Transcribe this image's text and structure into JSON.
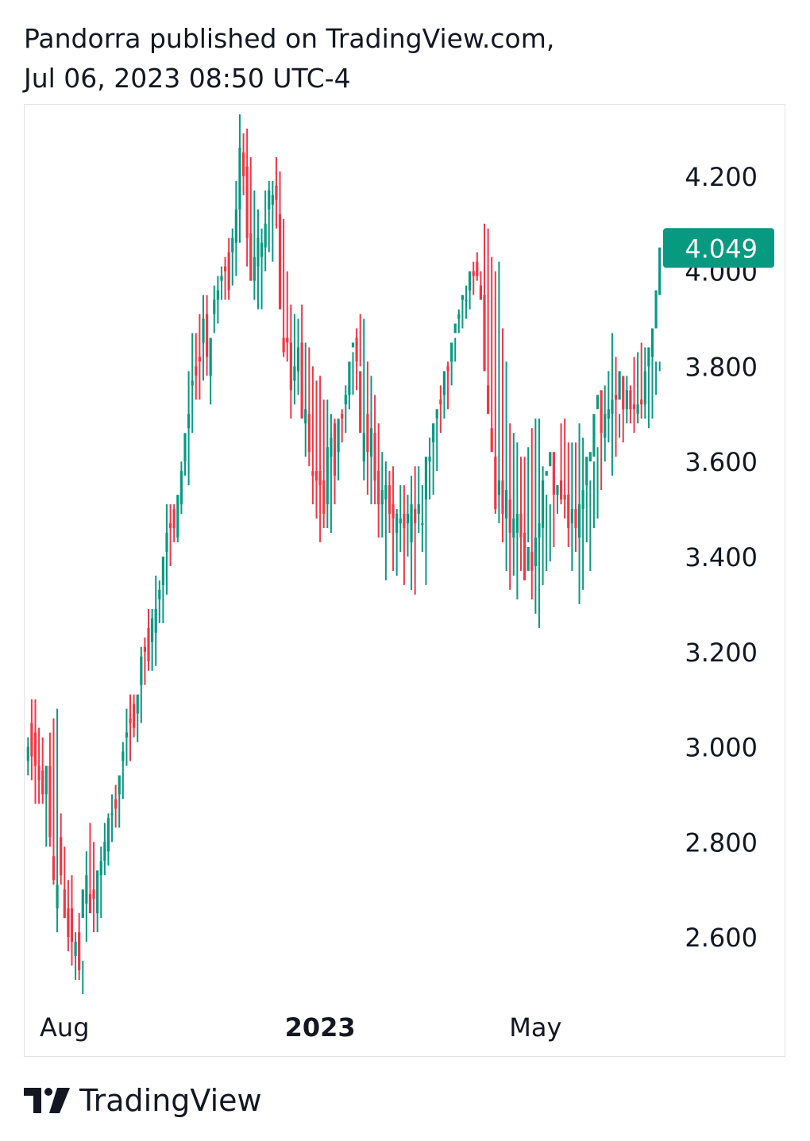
{
  "header": {
    "line1": "Pandorra published on TradingView.com,",
    "line2": "Jul 06, 2023 08:50 UTC-4"
  },
  "brand": {
    "name": "TradingView",
    "logo_icon": "tradingview-logo-icon"
  },
  "colors": {
    "up": "#089981",
    "down": "#f23645",
    "price_label_bg": "#089981",
    "price_label_text": "#ffffff"
  },
  "chart_data": {
    "type": "candlestick",
    "ylim": [
      2.5,
      4.33
    ],
    "yticks": [
      "4.200",
      "4.000",
      "3.800",
      "3.600",
      "3.400",
      "3.200",
      "3.000",
      "2.800",
      "2.600"
    ],
    "xticks": [
      {
        "label": "Aug",
        "bold": false,
        "index": 10
      },
      {
        "label": "2023",
        "bold": true,
        "index": 80
      },
      {
        "label": "May",
        "bold": false,
        "index": 139
      }
    ],
    "last_price": "4.049",
    "last_price_value": 4.049,
    "grid": false,
    "bars_high": [
      3.02,
      3.1,
      3.1,
      3.04,
      3.02,
      2.93,
      3.03,
      3.06,
      3.08,
      2.86,
      2.79,
      2.72,
      2.73,
      2.61,
      2.65,
      2.55,
      2.78,
      2.84,
      2.8,
      2.7,
      2.79,
      2.84,
      2.86,
      2.9,
      2.92,
      2.92,
      3.01,
      3.08,
      3.11,
      3.11,
      3.1,
      3.21,
      3.23,
      3.29,
      3.29,
      3.36,
      3.35,
      3.4,
      3.51,
      3.51,
      3.51,
      3.51,
      3.6,
      3.64,
      3.79,
      3.87,
      3.87,
      3.91,
      3.95,
      3.95,
      3.82,
      3.97,
      3.99,
      4.01,
      4.03,
      4.07,
      4.09,
      4.19,
      4.33,
      4.29,
      4.3,
      4.24,
      4.17,
      4.13,
      4.09,
      4.17,
      4.19,
      4.19,
      4.24,
      4.21,
      4.11,
      4.0,
      3.93,
      3.91,
      3.9,
      3.93,
      3.85,
      3.84,
      3.8,
      3.77,
      3.78,
      3.73,
      3.73,
      3.7,
      3.69,
      3.65,
      3.71,
      3.76,
      3.76,
      3.83,
      3.88,
      3.91,
      3.9,
      3.81,
      3.78,
      3.74,
      3.68,
      3.62,
      3.6,
      3.58,
      3.59,
      3.5,
      3.55,
      3.55,
      3.53,
      3.57,
      3.59,
      3.59,
      3.55,
      3.55,
      3.65,
      3.68,
      3.69,
      3.76,
      3.78,
      3.81,
      3.83,
      3.86,
      3.92,
      3.95,
      3.97,
      4.0,
      4.02,
      4.04,
      4.0,
      4.1,
      4.09,
      4.03,
      4.0,
      4.02,
      3.88,
      3.81,
      3.68,
      3.66,
      3.64,
      3.61,
      3.61,
      3.63,
      3.67,
      3.69,
      3.69,
      3.59,
      3.53,
      3.51,
      3.54,
      3.55,
      3.68,
      3.69,
      3.64,
      3.64,
      3.64,
      3.68,
      3.65,
      3.6,
      3.56,
      3.6,
      3.63,
      3.72,
      3.76,
      3.79,
      3.87,
      3.82,
      3.7,
      3.72,
      3.78,
      3.76,
      3.82,
      3.83,
      3.85,
      3.84,
      3.82,
      3.83,
      3.81,
      3.81,
      3.79,
      3.9,
      3.86,
      3.97,
      4.04
    ],
    "bars_low": [
      2.94,
      2.93,
      2.88,
      2.88,
      2.88,
      2.79,
      2.79,
      2.71,
      2.61,
      2.71,
      2.64,
      2.57,
      2.54,
      2.51,
      2.51,
      2.48,
      2.59,
      2.66,
      2.61,
      2.61,
      2.64,
      2.73,
      2.75,
      2.8,
      2.83,
      2.83,
      2.89,
      2.96,
      2.97,
      3.02,
      3.01,
      3.05,
      3.13,
      3.16,
      3.16,
      3.17,
      3.26,
      3.26,
      3.32,
      3.38,
      3.43,
      3.43,
      3.49,
      3.57,
      3.55,
      3.66,
      3.73,
      3.73,
      3.77,
      3.78,
      3.72,
      3.87,
      3.89,
      3.94,
      3.94,
      3.94,
      3.97,
      3.99,
      4.06,
      4.16,
      4.01,
      4.01,
      3.94,
      3.92,
      3.92,
      4.0,
      4.04,
      4.02,
      4.09,
      4.07,
      3.82,
      3.81,
      3.69,
      3.72,
      3.74,
      3.71,
      3.61,
      3.59,
      3.51,
      3.48,
      3.43,
      3.46,
      3.46,
      3.45,
      3.51,
      3.56,
      3.64,
      3.66,
      3.71,
      3.74,
      3.75,
      3.8,
      3.56,
      3.53,
      3.51,
      3.51,
      3.44,
      3.44,
      3.35,
      3.45,
      3.37,
      3.36,
      3.41,
      3.34,
      3.4,
      3.33,
      3.32,
      3.45,
      3.41,
      3.34,
      3.52,
      3.53,
      3.58,
      3.66,
      3.69,
      3.71,
      3.76,
      3.81,
      3.87,
      3.88,
      3.9,
      3.92,
      3.95,
      3.98,
      3.94,
      3.9,
      3.71,
      3.62,
      3.49,
      3.47,
      3.43,
      3.37,
      3.33,
      3.36,
      3.31,
      3.37,
      3.39,
      3.43,
      3.31,
      3.28,
      3.25,
      3.34,
      3.37,
      3.39,
      3.42,
      3.49,
      3.51,
      3.48,
      3.42,
      3.37,
      3.41,
      3.3,
      3.33,
      3.43,
      3.37,
      3.46,
      3.48,
      3.54,
      3.6,
      3.64,
      3.57,
      3.61,
      3.65,
      3.64,
      3.68,
      3.68,
      3.66,
      3.68,
      3.69,
      3.69,
      3.67,
      3.69,
      3.74,
      3.79,
      3.86
    ],
    "bars_open": [
      2.97,
      3.05,
      3.03,
      2.96,
      2.95,
      2.9,
      2.96,
      2.77,
      2.66,
      2.81,
      2.7,
      2.66,
      2.66,
      2.56,
      2.61,
      2.64,
      2.67,
      2.69,
      2.7,
      2.65,
      2.73,
      2.76,
      2.78,
      2.86,
      2.89,
      2.9,
      2.97,
      3.02,
      3.06,
      3.09,
      3.07,
      3.13,
      3.21,
      3.25,
      3.22,
      3.24,
      3.31,
      3.34,
      3.41,
      3.47,
      3.5,
      3.44,
      3.51,
      3.6,
      3.67,
      3.76,
      3.8,
      3.82,
      3.85,
      3.91,
      3.78,
      3.91,
      3.94,
      3.98,
      4.01,
      4.04,
      4.04,
      4.06,
      4.13,
      4.25,
      4.22,
      4.08,
      3.98,
      4.01,
      4.03,
      4.05,
      4.13,
      4.14,
      4.18,
      4.12,
      3.86,
      3.86,
      3.85,
      3.77,
      3.79,
      3.85,
      3.68,
      3.7,
      3.58,
      3.58,
      3.58,
      3.56,
      3.51,
      3.61,
      3.68,
      3.62,
      3.7,
      3.72,
      3.74,
      3.84,
      3.86,
      3.79,
      3.6,
      3.7,
      3.61,
      3.66,
      3.58,
      3.51,
      3.52,
      3.55,
      3.51,
      3.45,
      3.47,
      3.49,
      3.47,
      3.43,
      3.5,
      3.49,
      3.47,
      3.52,
      3.6,
      3.64,
      3.69,
      3.73,
      3.74,
      3.8,
      3.81,
      3.87,
      3.9,
      3.94,
      3.94,
      3.96,
      4.0,
      4.02,
      3.97,
      3.95,
      3.76,
      3.67,
      3.61,
      3.53,
      3.56,
      3.48,
      3.52,
      3.44,
      3.45,
      3.49,
      3.45,
      3.37,
      3.41,
      3.38,
      3.44,
      3.46,
      3.57,
      3.59,
      3.62,
      3.53,
      3.56,
      3.53,
      3.53,
      3.47,
      3.5,
      3.44,
      3.5,
      3.55,
      3.6,
      3.61,
      3.71,
      3.75,
      3.65,
      3.69,
      3.7,
      3.74,
      3.73,
      3.78,
      3.71,
      3.75,
      3.72,
      3.7,
      3.73,
      3.72,
      3.8,
      3.82,
      3.88,
      3.95
    ],
    "bars_close": [
      3.0,
      2.98,
      2.96,
      2.93,
      2.9,
      2.96,
      2.81,
      2.72,
      2.71,
      2.73,
      2.64,
      2.6,
      2.59,
      2.59,
      2.53,
      2.7,
      2.73,
      2.65,
      2.68,
      2.74,
      2.76,
      2.8,
      2.85,
      2.86,
      2.87,
      2.94,
      2.99,
      3.03,
      3.05,
      3.04,
      3.11,
      3.19,
      3.2,
      3.18,
      3.27,
      3.29,
      3.33,
      3.4,
      3.45,
      3.46,
      3.46,
      3.53,
      3.58,
      3.66,
      3.7,
      3.77,
      3.78,
      3.81,
      3.9,
      3.82,
      3.86,
      3.94,
      3.96,
      3.99,
      4.0,
      3.96,
      4.07,
      4.13,
      4.26,
      4.2,
      4.07,
      3.98,
      4.03,
      4.07,
      4.06,
      4.1,
      4.17,
      4.16,
      4.15,
      3.92,
      3.83,
      3.85,
      3.75,
      3.8,
      3.84,
      3.69,
      3.71,
      3.62,
      3.57,
      3.56,
      3.55,
      3.49,
      3.63,
      3.65,
      3.57,
      3.69,
      3.69,
      3.74,
      3.81,
      3.85,
      3.81,
      3.66,
      3.66,
      3.62,
      3.67,
      3.56,
      3.51,
      3.54,
      3.55,
      3.49,
      3.48,
      3.49,
      3.48,
      3.46,
      3.49,
      3.51,
      3.47,
      3.51,
      3.47,
      3.61,
      3.61,
      3.68,
      3.71,
      3.72,
      3.79,
      3.79,
      3.85,
      3.89,
      3.91,
      3.95,
      3.94,
      4.0,
      3.99,
      3.99,
      3.94,
      3.79,
      3.7,
      3.62,
      3.5,
      3.56,
      3.49,
      3.54,
      3.45,
      3.48,
      3.49,
      3.44,
      3.35,
      3.42,
      3.37,
      3.44,
      3.47,
      3.56,
      3.58,
      3.62,
      3.53,
      3.55,
      3.52,
      3.52,
      3.46,
      3.5,
      3.46,
      3.51,
      3.54,
      3.61,
      3.62,
      3.7,
      3.74,
      3.66,
      3.7,
      3.71,
      3.73,
      3.73,
      3.79,
      3.71,
      3.75,
      3.71,
      3.71,
      3.72,
      3.72,
      3.79,
      3.84,
      3.88,
      3.96,
      4.05
    ]
  }
}
